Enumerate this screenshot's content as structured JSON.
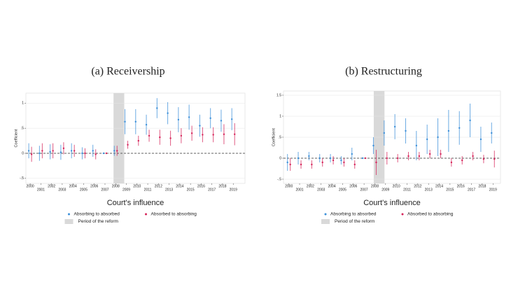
{
  "chart_data": [
    {
      "type": "errorbar",
      "title": "(a) Receivership",
      "x_label": "Court's influence",
      "y_label": "Coefficient",
      "x": [
        2000,
        2001,
        2002,
        2003,
        2004,
        2005,
        2006,
        2007,
        2008,
        2009,
        2010,
        2011,
        2012,
        2013,
        2014,
        2015,
        2016,
        2017,
        2018,
        2019
      ],
      "xlim": [
        1999.6,
        2020.1
      ],
      "xticks": [
        2000,
        2001,
        2002,
        2003,
        2004,
        2005,
        2006,
        2007,
        2008,
        2009,
        2010,
        2011,
        2012,
        2013,
        2014,
        2015,
        2016,
        2017,
        2018,
        2019
      ],
      "ylim": [
        -0.6,
        1.2
      ],
      "yticks": [
        {
          "value": -0.5,
          "label": "-.5"
        },
        0,
        {
          "value": 0.5,
          "label": ".5"
        },
        1
      ],
      "grid": true,
      "shade": {
        "name": "Period of the reform",
        "color": "#d9d9d9",
        "x": [
          2007.8,
          2008.8
        ]
      },
      "series": [
        {
          "name": "Absorbing to absorbed",
          "color": "#3b8fd9",
          "values": [
            0.05,
            0,
            0.03,
            0.02,
            0.05,
            0,
            0.05,
            0,
            0.05,
            0.63,
            0.63,
            0.57,
            0.9,
            0.8,
            0.67,
            0.72,
            0.55,
            0.7,
            0.65,
            0.68
          ],
          "errors": [
            0.15,
            0.15,
            0.15,
            0.15,
            0.15,
            0.12,
            0.12,
            0,
            0.1,
            0.25,
            0.25,
            0.2,
            0.2,
            0.22,
            0.25,
            0.25,
            0.22,
            0.2,
            0.22,
            0.22
          ]
        },
        {
          "name": "Absorbed to absorbing",
          "color": "#d6245a",
          "values": [
            -0.02,
            0.05,
            0.05,
            0.1,
            0.05,
            0,
            -0.02,
            0,
            0.05,
            0.17,
            0.25,
            0.35,
            0.32,
            0.3,
            0.35,
            0.4,
            0.37,
            0.37,
            0.38,
            0.38
          ],
          "errors": [
            0.15,
            0.15,
            0.15,
            0.12,
            0.12,
            0.1,
            0.1,
            0,
            0.1,
            0.08,
            0.1,
            0.12,
            0.15,
            0.15,
            0.15,
            0.15,
            0.15,
            0.15,
            0.2,
            0.22
          ]
        }
      ]
    },
    {
      "type": "errorbar",
      "title": "(b) Restructuring",
      "x_label": "Court's influence",
      "y_label": "Coefficient",
      "x": [
        2000,
        2001,
        2002,
        2003,
        2004,
        2005,
        2006,
        2007,
        2008,
        2009,
        2010,
        2011,
        2012,
        2013,
        2014,
        2015,
        2016,
        2017,
        2018,
        2019
      ],
      "xlim": [
        1999.5,
        2019.7
      ],
      "xticks": [
        2000,
        2001,
        2002,
        2003,
        2004,
        2005,
        2006,
        2007,
        2008,
        2009,
        2010,
        2011,
        2012,
        2013,
        2014,
        2015,
        2016,
        2017,
        2018,
        2019
      ],
      "ylim": [
        -0.6,
        1.6
      ],
      "yticks": [
        {
          "value": -0.5,
          "label": "-.5"
        },
        0,
        {
          "value": 0.5,
          "label": ".5"
        },
        1,
        {
          "value": 1.5,
          "label": "1.5"
        }
      ],
      "grid": true,
      "shade": {
        "name": "Period of the reform",
        "color": "#d9d9d9",
        "x": [
          2007.9,
          2008.9
        ]
      },
      "series": [
        {
          "name": "Absorbing to absorbed",
          "color": "#3b8fd9",
          "values": [
            -0.1,
            0,
            0.05,
            0,
            0,
            -0.05,
            0.1,
            0,
            0.3,
            0.6,
            0.75,
            0.65,
            0.3,
            0.45,
            0.5,
            0.65,
            0.72,
            0.9,
            0.45,
            0.6
          ],
          "errors": [
            0.2,
            0.15,
            0.1,
            0.1,
            0.1,
            0.1,
            0.15,
            0,
            0.2,
            0.3,
            0.3,
            0.3,
            0.35,
            0.35,
            0.45,
            0.5,
            0.4,
            0.4,
            0.3,
            0.25
          ]
        },
        {
          "name": "Absorbed to absorbing",
          "color": "#d6245a",
          "values": [
            -0.15,
            -0.15,
            -0.15,
            -0.1,
            -0.05,
            -0.1,
            -0.15,
            0,
            -0.1,
            0,
            0,
            0.05,
            0.05,
            0.1,
            0.1,
            -0.1,
            -0.05,
            0.05,
            -0.02,
            -0.02
          ],
          "errors": [
            0.15,
            0.1,
            0.1,
            0.1,
            0.1,
            0.1,
            0.1,
            0,
            0.3,
            0.15,
            0.1,
            0.1,
            0.1,
            0.1,
            0.1,
            0.1,
            0.1,
            0.1,
            0.1,
            0.2
          ]
        }
      ]
    }
  ]
}
